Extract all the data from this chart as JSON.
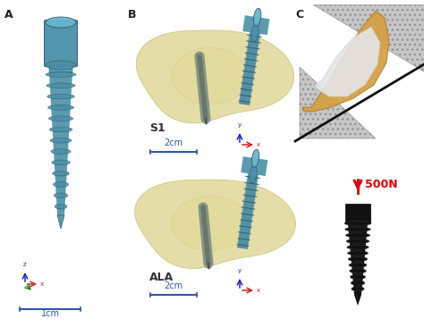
{
  "bg_color": "#ffffff",
  "panel_labels": [
    "A",
    "B",
    "C"
  ],
  "screw_blue": "#4a8fa8",
  "screw_blue_light": "#6ab5cc",
  "screw_blue_dark": "#2a5a6a",
  "screw_gray": "#7a8a80",
  "screw_gray_dark": "#4a5a50",
  "bone_fill": "#d8cc7a",
  "bone_edge": "#b0a848",
  "bone_alpha": 0.65,
  "axis_x": "#cc2222",
  "axis_y": "#228822",
  "axis_z": "#2222cc",
  "arrow_red": "#dd0000",
  "black_screw": "#111111",
  "gray_surface": "#b8b8b8",
  "gray_hatched": "#c0c0c0",
  "bone_orange": "#d4a040",
  "bone_white": "#e8e8e8",
  "label_s1": "S1",
  "label_ala": "ALA",
  "label_1cm": "1cm",
  "label_2cm": "2cm",
  "label_500n": "500N"
}
